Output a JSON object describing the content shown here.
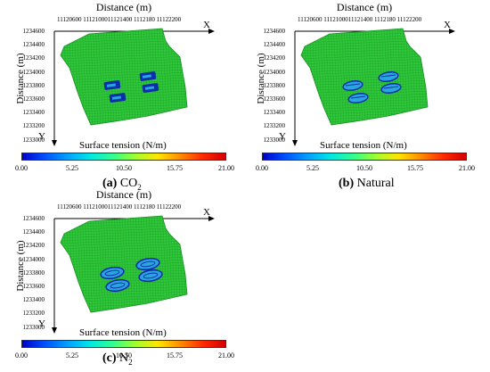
{
  "axis": {
    "x_title": "Distance (m)",
    "x_ticks": "11120600 1112100011121400 1112180    11122200",
    "x_letter": "X",
    "y_title": "Distance (m)",
    "y_letter": "Y",
    "y_ticks": [
      "1234600",
      "1234400",
      "1234200",
      "1234000",
      "1233800",
      "1233600",
      "1233400",
      "1233200",
      "1233000"
    ]
  },
  "colorbar": {
    "title": "Surface tension (N/m)",
    "ticks": [
      "0.00",
      "5.25",
      "10.50",
      "15.75",
      "21.00"
    ],
    "colors": [
      "#0000c8",
      "#0050ff",
      "#00a0ff",
      "#00e6e6",
      "#30ff90",
      "#a0ff30",
      "#ffe600",
      "#ff8c00",
      "#ff2a00",
      "#d20000"
    ]
  },
  "panels": [
    {
      "id": "a",
      "label": "(a)",
      "gas": "CO",
      "sub": "2"
    },
    {
      "id": "b",
      "label": "(b)",
      "gas": "Natural",
      "sub": ""
    },
    {
      "id": "c",
      "label": "(c)",
      "gas": "N",
      "sub": "2"
    }
  ],
  "colors": {
    "grid_fill": "#2fc83a",
    "grid_line": "#1a8f24",
    "well_dark": "#0b2fa8",
    "well_light": "#29a6e0"
  }
}
